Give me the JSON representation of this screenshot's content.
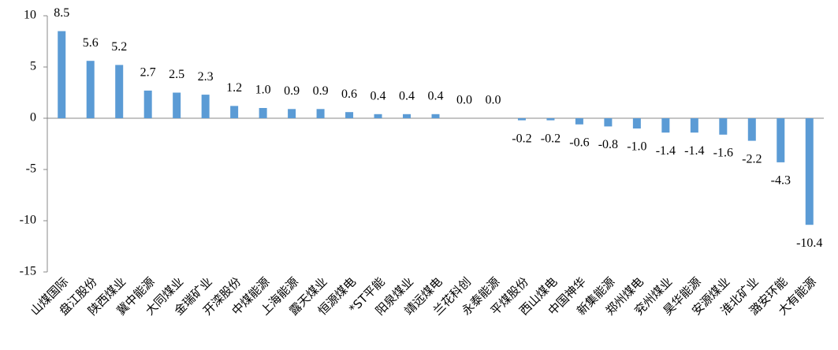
{
  "chart_data": {
    "type": "bar",
    "categories": [
      "山煤国际",
      "盘江股份",
      "陕西煤业",
      "冀中能源",
      "大同煤业",
      "金瑞矿业",
      "开滦股份",
      "中煤能源",
      "上海能源",
      "露天煤业",
      "恒源煤电",
      "*ST平能",
      "阳泉煤业",
      "靖远煤电",
      "兰花科创",
      "永泰能源",
      "平煤股份",
      "西山煤电",
      "中国神华",
      "新集能源",
      "郑州煤电",
      "兖州煤业",
      "昊华能源",
      "安源煤业",
      "淮北矿业",
      "潞安环能",
      "大有能源"
    ],
    "values": [
      8.5,
      5.6,
      5.2,
      2.7,
      2.5,
      2.3,
      1.2,
      1.0,
      0.9,
      0.9,
      0.6,
      0.4,
      0.4,
      0.4,
      0.0,
      0.0,
      -0.2,
      -0.2,
      -0.6,
      -0.8,
      -1.0,
      -1.4,
      -1.4,
      -1.6,
      -2.2,
      -4.3,
      -10.4
    ],
    "value_labels": [
      "8.5",
      "5.6",
      "5.2",
      "2.7",
      "2.5",
      "2.3",
      "1.2",
      "1.0",
      "0.9",
      "0.9",
      "0.6",
      "0.4",
      "0.4",
      "0.4",
      "0.0",
      "0.0",
      "-0.2",
      "-0.2",
      "-0.6",
      "-0.8",
      "-1.0",
      "-1.4",
      "-1.4",
      "-1.6",
      "-2.2",
      "-4.3",
      "-10.4"
    ],
    "color": "#5b9bd5",
    "ylim": [
      -15,
      10
    ],
    "yticks": [
      10,
      5,
      0,
      -5,
      -10,
      -15
    ],
    "grid": false
  }
}
